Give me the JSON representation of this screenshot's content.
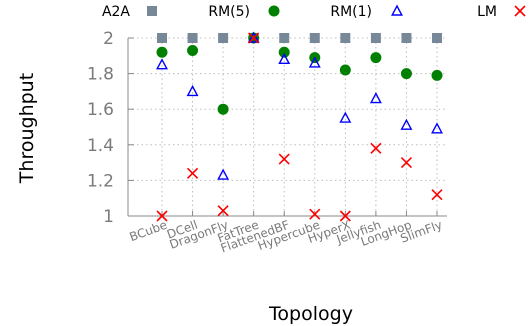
{
  "chart_data": {
    "type": "scatter",
    "title": "",
    "xlabel": "Topology",
    "ylabel": "Throughput",
    "ylim": [
      1,
      2
    ],
    "yticks": [
      "1",
      "1.2",
      "1.4",
      "1.6",
      "1.8",
      "2"
    ],
    "grid": true,
    "legend_position": "top",
    "categories": [
      "BCube",
      "DCell",
      "DragonFly",
      "FatTree",
      "FlattenedBF",
      "Hypercube",
      "HyperX",
      "Jellyfish",
      "LongHop",
      "SlimFly"
    ],
    "series": [
      {
        "name": "A2A",
        "marker": "square",
        "color": "#778899",
        "values": [
          2,
          2,
          2,
          2,
          2,
          2,
          2,
          2,
          2,
          2
        ]
      },
      {
        "name": "RM(5)",
        "marker": "circle",
        "color": "#008000",
        "values": [
          1.92,
          1.93,
          1.6,
          2,
          1.92,
          1.89,
          1.82,
          1.89,
          1.8,
          1.79
        ]
      },
      {
        "name": "RM(1)",
        "marker": "triangle",
        "color": "#0000ff",
        "values": [
          1.85,
          1.7,
          1.23,
          2,
          1.88,
          1.86,
          1.55,
          1.66,
          1.51,
          1.49
        ]
      },
      {
        "name": "LM",
        "marker": "cross",
        "color": "#ff0000",
        "values": [
          1,
          1.24,
          1.03,
          2,
          1.32,
          1.01,
          1,
          1.38,
          1.3,
          1.12
        ]
      }
    ]
  }
}
